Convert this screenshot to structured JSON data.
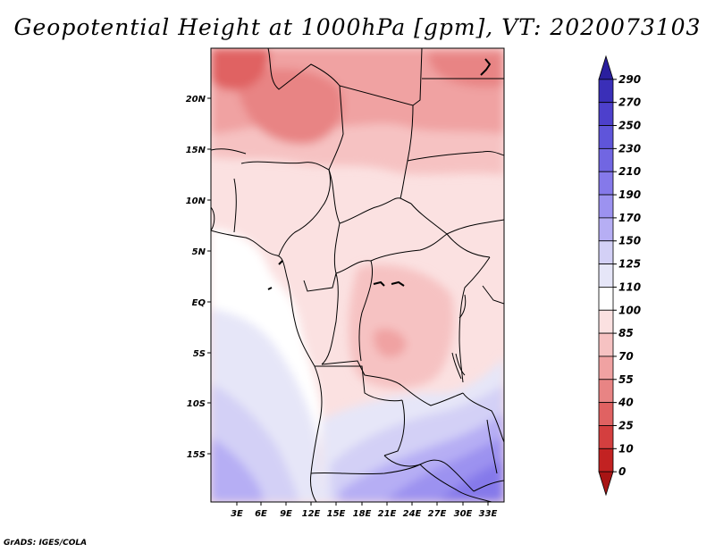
{
  "title": "Geopotential Height at 1000hPa [gpm], VT: 2020073103",
  "credit": "GrADS: IGES/COLA",
  "map": {
    "lat_labels": [
      "20N",
      "15N",
      "10N",
      "5N",
      "EQ",
      "5S",
      "10S",
      "15S"
    ],
    "lon_labels": [
      "3E",
      "6E",
      "9E",
      "12E",
      "15E",
      "18E",
      "21E",
      "24E",
      "27E",
      "30E",
      "33E"
    ]
  },
  "colorbar": {
    "labels": [
      "290",
      "270",
      "250",
      "230",
      "210",
      "190",
      "170",
      "150",
      "125",
      "110",
      "100",
      "85",
      "70",
      "55",
      "40",
      "25",
      "10",
      "0"
    ],
    "colors": [
      "#2a1f9e",
      "#3a2fb8",
      "#4d40cc",
      "#5f55da",
      "#7166e2",
      "#8579ea",
      "#9c92f0",
      "#b6aef4",
      "#d3d0f6",
      "#e6e6f8",
      "#ffffff",
      "#fbe1e1",
      "#f6c2c2",
      "#f0a2a2",
      "#e88484",
      "#e06262",
      "#d43f3f",
      "#c22222",
      "#a81414"
    ]
  }
}
